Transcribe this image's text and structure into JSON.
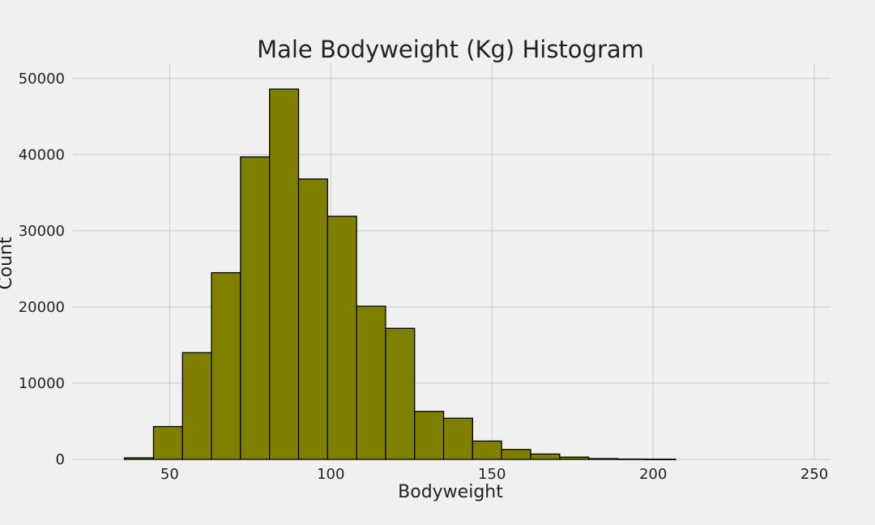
{
  "chart_data": {
    "type": "bar",
    "title": "Male Bodyweight (Kg) Histogram",
    "xlabel": "Bodyweight",
    "ylabel": "Count",
    "bar_color": "#808000",
    "edge_color": "#000000",
    "grid": true,
    "xlim": [
      20,
      255
    ],
    "ylim": [
      0,
      52000
    ],
    "x_ticks": [
      50,
      100,
      150,
      200,
      250
    ],
    "y_ticks": [
      0,
      10000,
      20000,
      30000,
      40000,
      50000
    ],
    "bin_width": 9,
    "bins": [
      {
        "start": 36,
        "value": 200
      },
      {
        "start": 45,
        "value": 4300
      },
      {
        "start": 54,
        "value": 14000
      },
      {
        "start": 63,
        "value": 24500
      },
      {
        "start": 72,
        "value": 39700
      },
      {
        "start": 81,
        "value": 48600
      },
      {
        "start": 90,
        "value": 36800
      },
      {
        "start": 99,
        "value": 31900
      },
      {
        "start": 108,
        "value": 20100
      },
      {
        "start": 117,
        "value": 17200
      },
      {
        "start": 126,
        "value": 6300
      },
      {
        "start": 135,
        "value": 5400
      },
      {
        "start": 144,
        "value": 2400
      },
      {
        "start": 153,
        "value": 1300
      },
      {
        "start": 162,
        "value": 700
      },
      {
        "start": 171,
        "value": 300
      },
      {
        "start": 180,
        "value": 100
      },
      {
        "start": 189,
        "value": 40
      },
      {
        "start": 198,
        "value": 20
      }
    ]
  }
}
